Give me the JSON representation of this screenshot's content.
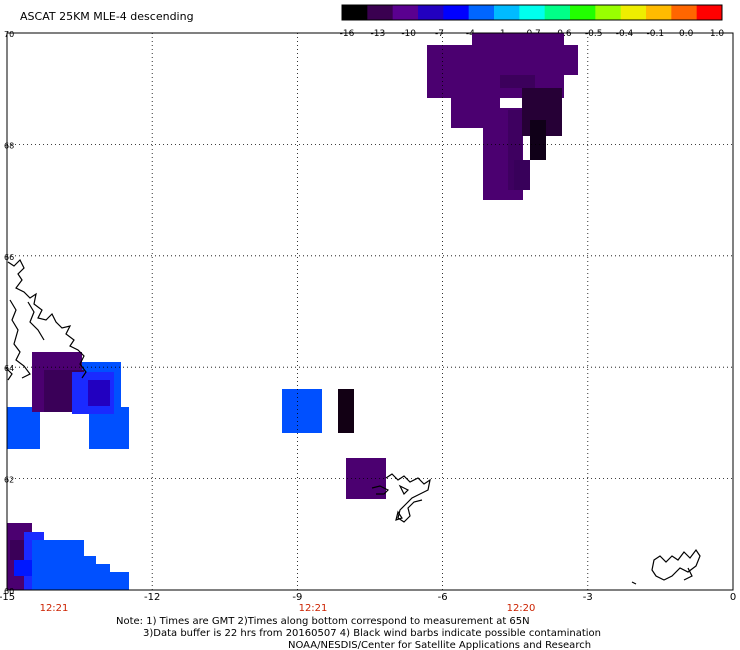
{
  "title": "ASCAT 25KM MLE-4 descending",
  "colorbar": {
    "labels": [
      "-16",
      "-13",
      "-10",
      "-7",
      "-4",
      "-1",
      "-0.7",
      "-0.6",
      "-0.5",
      "-0.4",
      "-0.1",
      "0.0",
      "1.0"
    ],
    "colors": [
      "#000000",
      "#3a0050",
      "#5a0090",
      "#2200c0",
      "#0000ff",
      "#0066ff",
      "#00bbff",
      "#00ffee",
      "#00ff88",
      "#22ff00",
      "#99ff00",
      "#eeee00",
      "#ffbb00",
      "#ff6600",
      "#ff0000"
    ]
  },
  "axes": {
    "x_ticks": [
      "-15",
      "-12",
      "-9",
      "-6",
      "-3",
      "0"
    ],
    "y_ticks": [
      "70",
      "68",
      "66",
      "64",
      "62",
      "60"
    ],
    "lon_range": [
      -15,
      0
    ],
    "lat_range": [
      60,
      70
    ],
    "grid": "dotted"
  },
  "times": {
    "labels": [
      "12:21",
      "12:21",
      "12:20"
    ],
    "color": "#cc2200"
  },
  "notes": [
    "Note: 1) Times are GMT 2)Times along bottom correspond to measurement at 65N",
    "3)Data buffer is 22 hrs from 20160507 4) Black wind barbs indicate possible contamination",
    "NOAA/NESDIS/Center for Satellite Applications and Research"
  ],
  "colors": {
    "purple": "#4b0070",
    "dark_purple": "#3a0058",
    "near_black": "#1a0020",
    "blue": "#0050ff",
    "bright_blue": "#1a2aff",
    "deep_blue": "#0018ff"
  }
}
